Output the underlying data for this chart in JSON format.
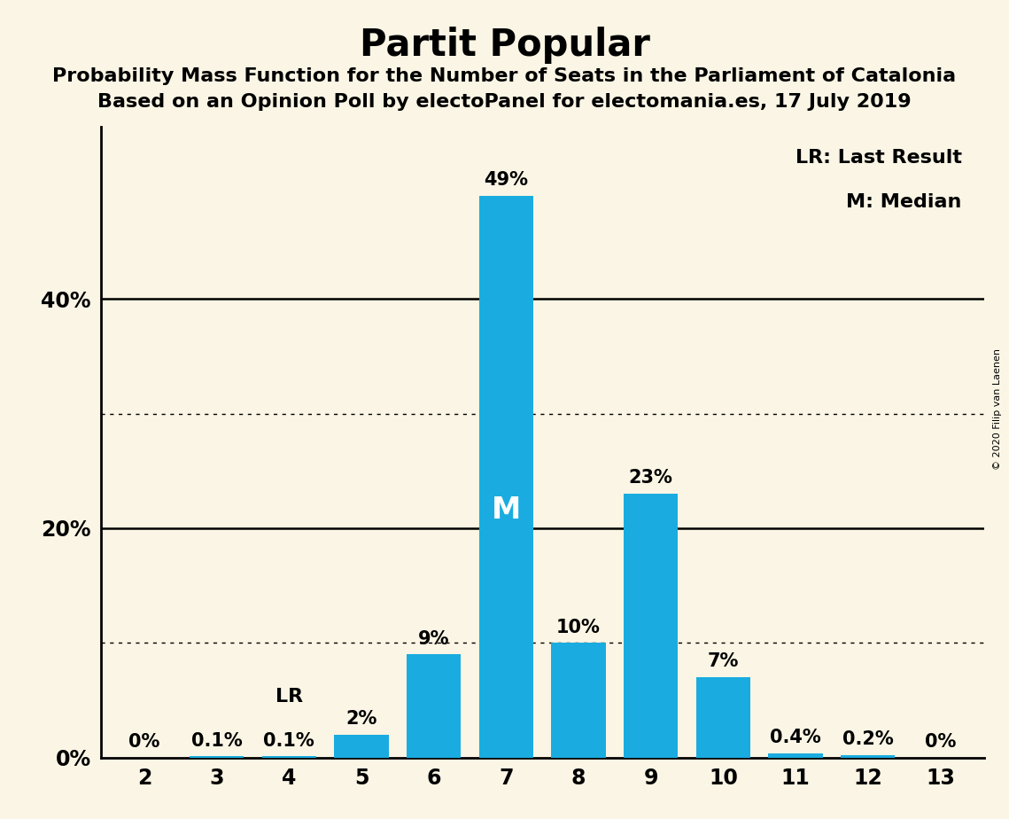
{
  "title": "Partit Popular",
  "subtitle1": "Probability Mass Function for the Number of Seats in the Parliament of Catalonia",
  "subtitle2": "Based on an Opinion Poll by electoPanel for electomania.es, 17 July 2019",
  "copyright": "© 2020 Filip van Laenen",
  "categories": [
    2,
    3,
    4,
    5,
    6,
    7,
    8,
    9,
    10,
    11,
    12,
    13
  ],
  "values": [
    0.0,
    0.1,
    0.1,
    2.0,
    9.0,
    49.0,
    10.0,
    23.0,
    7.0,
    0.4,
    0.2,
    0.0
  ],
  "labels": [
    "0%",
    "0.1%",
    "0.1%",
    "2%",
    "9%",
    "49%",
    "10%",
    "23%",
    "7%",
    "0.4%",
    "0.2%",
    "0%"
  ],
  "bar_color": "#1aace0",
  "background_color": "#faf5e4",
  "median_seat": 7,
  "lr_seat": 4,
  "legend_lr": "LR: Last Result",
  "legend_m": "M: Median",
  "ytick_labels": [
    "0%",
    "20%",
    "40%"
  ],
  "ytick_values": [
    0,
    20,
    40
  ],
  "dotted_lines": [
    10,
    30
  ],
  "solid_lines": [
    20,
    40
  ],
  "ylim": [
    0,
    55
  ],
  "title_fontsize": 30,
  "subtitle_fontsize": 16,
  "bar_label_fontsize": 15,
  "axis_tick_fontsize": 17,
  "legend_fontsize": 16,
  "median_label_fontsize": 24,
  "lr_label_fontsize": 16
}
